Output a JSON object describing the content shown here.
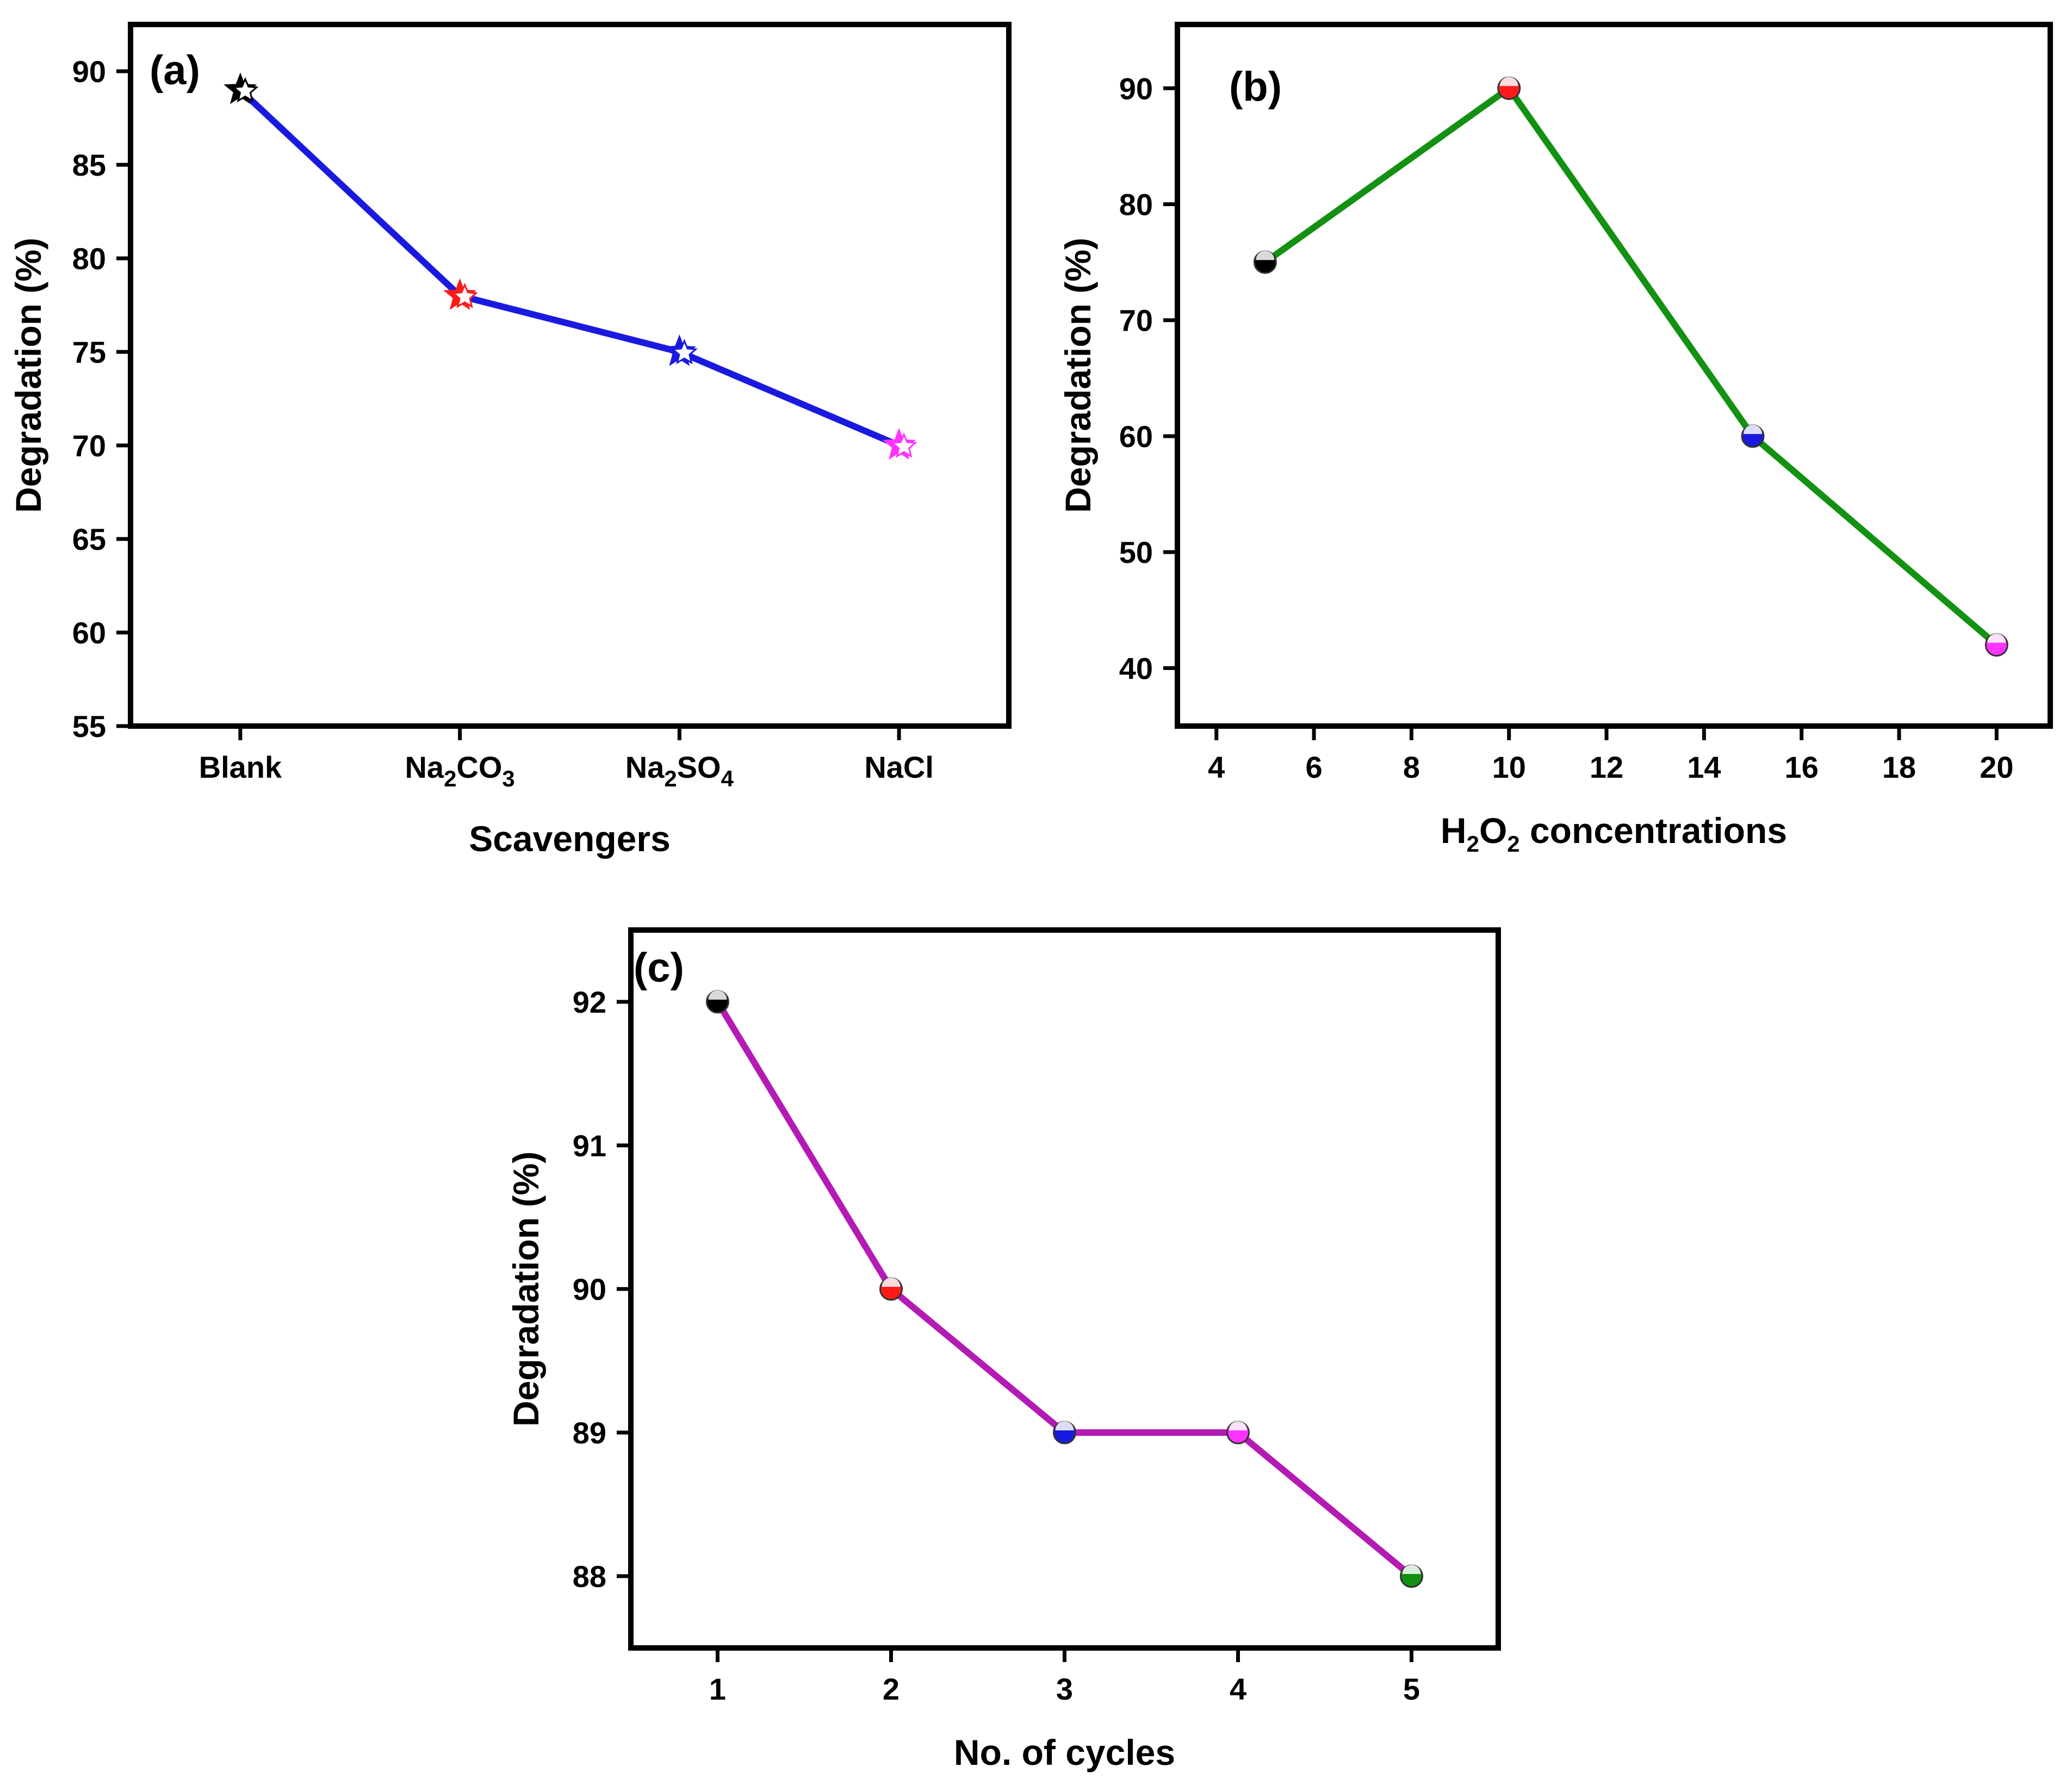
{
  "chart_data": [
    {
      "panel": "(a)",
      "type": "line",
      "marker": "star",
      "line_color": "#1a1adf",
      "title": "",
      "xlabel": "Scavengers",
      "ylabel": "Degradation (%)",
      "categories": [
        {
          "main": "Blank",
          "parts": [
            {
              "t": "Blank"
            }
          ]
        },
        {
          "main": "Na2CO3",
          "parts": [
            {
              "t": "Na"
            },
            {
              "t": "2",
              "sub": true
            },
            {
              "t": "CO"
            },
            {
              "t": "3",
              "sub": true
            }
          ]
        },
        {
          "main": "Na2SO4",
          "parts": [
            {
              "t": "Na"
            },
            {
              "t": "2",
              "sub": true
            },
            {
              "t": "SO"
            },
            {
              "t": "4",
              "sub": true
            }
          ]
        },
        {
          "main": "NaCl",
          "parts": [
            {
              "t": "NaCl"
            }
          ]
        }
      ],
      "values": [
        89,
        78,
        75,
        70
      ],
      "marker_colors": [
        "#000000",
        "#ff1a1a",
        "#1a1adf",
        "#ff33ff"
      ],
      "ylim": [
        55,
        92.5
      ],
      "yticks": [
        55,
        60,
        65,
        70,
        75,
        80,
        85,
        90
      ]
    },
    {
      "panel": "(b)",
      "type": "line",
      "marker": "circle",
      "line_color": "#129112",
      "title": "",
      "xlabel_parts": [
        {
          "t": "H"
        },
        {
          "t": "2",
          "sub": true
        },
        {
          "t": "O"
        },
        {
          "t": "2",
          "sub": true
        },
        {
          "t": " concentrations"
        }
      ],
      "xlabel": "H2O2 concentrations",
      "ylabel": "Degradation (%)",
      "x": [
        5,
        10,
        15,
        20
      ],
      "values": [
        75,
        90,
        60,
        42
      ],
      "marker_colors": [
        "#000000",
        "#ff1a1a",
        "#1a1adf",
        "#ff33ff"
      ],
      "xlim": [
        3.2,
        21.1
      ],
      "xticks": [
        4,
        6,
        8,
        10,
        12,
        14,
        16,
        18,
        20
      ],
      "ylim": [
        35,
        95.5
      ],
      "yticks": [
        40,
        50,
        60,
        70,
        80,
        90
      ]
    },
    {
      "panel": "(c)",
      "type": "line",
      "marker": "circle",
      "line_color": "#b41ab4",
      "title": "",
      "xlabel": "No. of cycles",
      "ylabel": "Degradation (%)",
      "x": [
        1,
        2,
        3,
        4,
        5
      ],
      "values": [
        92,
        90,
        89,
        89,
        88
      ],
      "marker_colors": [
        "#000000",
        "#ff1a1a",
        "#1a1adf",
        "#ff33ff",
        "#129112"
      ],
      "xlim": [
        0.5,
        5.5
      ],
      "xticks": [
        1,
        2,
        3,
        4,
        5
      ],
      "ylim": [
        87.5,
        92.5
      ],
      "yticks": [
        88,
        89,
        90,
        91,
        92
      ]
    }
  ]
}
